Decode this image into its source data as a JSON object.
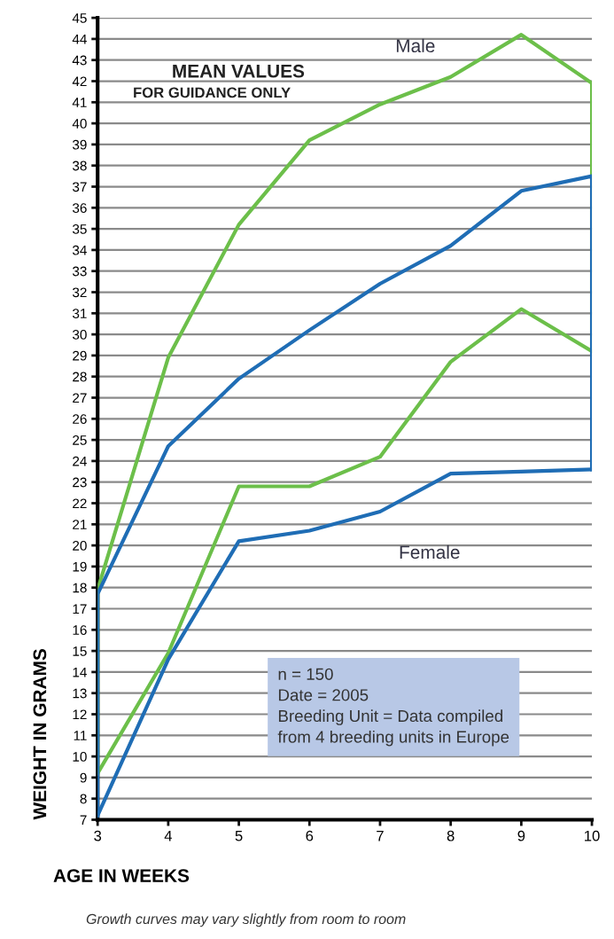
{
  "chart_data": {
    "type": "line",
    "xlabel": "AGE IN WEEKS",
    "ylabel": "WEIGHT IN GRAMS",
    "series": [
      {
        "name": "Male",
        "color": "#6cbf4a",
        "x": [
          3,
          3,
          4,
          5,
          6,
          7,
          8,
          9,
          10,
          10
        ],
        "values": [
          9.2,
          17.9,
          28.9,
          35.2,
          39.2,
          40.9,
          42.2,
          44.2,
          41.9,
          29.2
        ]
      },
      {
        "color": "#6cbf4a",
        "x": [
          3,
          4,
          5,
          6,
          7,
          8,
          9,
          10
        ],
        "values": [
          9.2,
          14.9,
          22.8,
          22.8,
          24.2,
          28.7,
          31.2,
          29.2
        ]
      },
      {
        "color": "#1f6db5",
        "x": [
          3,
          3,
          4,
          5,
          6,
          7,
          8,
          9,
          10,
          10
        ],
        "values": [
          7.2,
          17.7,
          24.7,
          27.9,
          30.2,
          32.4,
          34.2,
          36.8,
          37.5,
          23.6
        ]
      },
      {
        "name": "Female",
        "color": "#1f6db5",
        "x": [
          3,
          4,
          5,
          6,
          7,
          8,
          9,
          10
        ],
        "values": [
          7.2,
          14.6,
          20.2,
          20.7,
          21.6,
          23.4,
          23.5,
          23.6
        ]
      }
    ],
    "xlim": [
      3,
      10
    ],
    "xticks": [
      3,
      4,
      5,
      6,
      7,
      8,
      9,
      10
    ],
    "ylim": [
      7,
      45
    ],
    "yticks": [
      7,
      8,
      9,
      10,
      11,
      12,
      13,
      14,
      15,
      16,
      17,
      18,
      19,
      20,
      21,
      22,
      23,
      24,
      25,
      26,
      27,
      28,
      29,
      30,
      31,
      32,
      33,
      34,
      35,
      36,
      37,
      38,
      39,
      40,
      41,
      42,
      43,
      44,
      45
    ],
    "grid": "y",
    "legend": false,
    "marker": "none",
    "line_style": "solid",
    "annotations": [
      "MEAN VALUES",
      "FOR GUIDANCE ONLY",
      "n = 150\nDate = 2005\nBreeding Unit = Data compiled\nfrom 4 breeding units in Europe",
      "Growth curves may vary slightly from room to room"
    ]
  }
}
